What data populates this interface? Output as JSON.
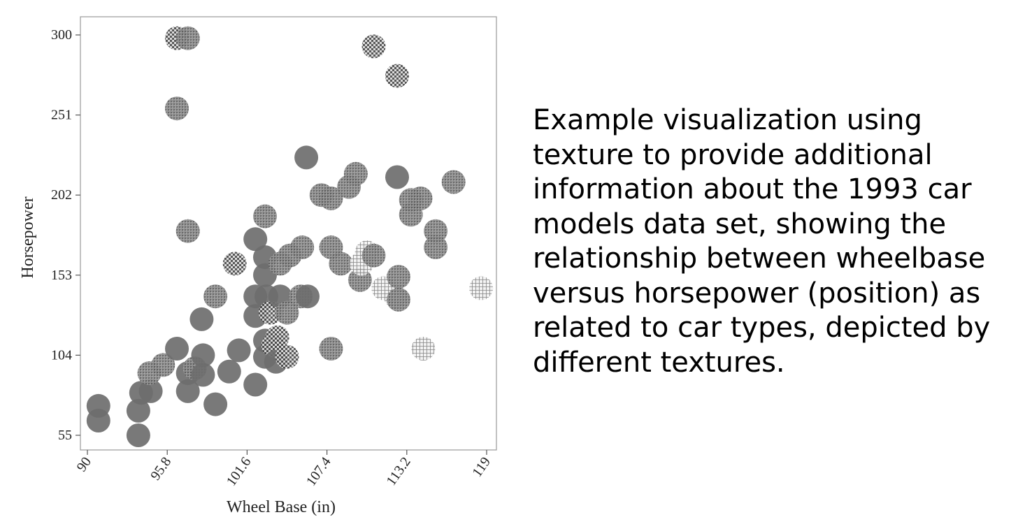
{
  "caption": "Example visualization using texture to provide additional information about the 1993 car models data set, showing the relationship between wheelbase versus horsepower (position) as related to car types, depicted by different textures.",
  "chart_data": {
    "type": "scatter",
    "xlabel": "Wheel Base (in)",
    "ylabel": "Horsepower",
    "xlim": [
      90,
      119
    ],
    "ylim": [
      55,
      300
    ],
    "xticks": [
      "90",
      "95.8",
      "101.6",
      "107.4",
      "113.2",
      "119"
    ],
    "yticks": [
      "55",
      "104",
      "153",
      "202",
      "251",
      "300"
    ],
    "textures": {
      "solid": {
        "color": "#6e6e6e"
      },
      "check": {
        "color": "#5a5a5a"
      },
      "grid": {
        "color": "#8a8a8a"
      },
      "speck": {
        "color": "#7a7a7a"
      }
    },
    "points": [
      {
        "x": 90.8,
        "y": 73,
        "t": "solid"
      },
      {
        "x": 90.8,
        "y": 64,
        "t": "solid"
      },
      {
        "x": 93.7,
        "y": 55,
        "t": "solid"
      },
      {
        "x": 93.7,
        "y": 70,
        "t": "solid"
      },
      {
        "x": 93.9,
        "y": 81,
        "t": "solid"
      },
      {
        "x": 94.6,
        "y": 82,
        "t": "solid"
      },
      {
        "x": 94.5,
        "y": 93,
        "t": "speck"
      },
      {
        "x": 95.5,
        "y": 98,
        "t": "speck"
      },
      {
        "x": 96.5,
        "y": 108,
        "t": "solid"
      },
      {
        "x": 97.3,
        "y": 93,
        "t": "solid"
      },
      {
        "x": 97.3,
        "y": 82,
        "t": "solid"
      },
      {
        "x": 97.8,
        "y": 96,
        "t": "speck"
      },
      {
        "x": 98.4,
        "y": 92,
        "t": "solid"
      },
      {
        "x": 98.4,
        "y": 104,
        "t": "solid"
      },
      {
        "x": 98.3,
        "y": 126,
        "t": "solid"
      },
      {
        "x": 99.3,
        "y": 74,
        "t": "solid"
      },
      {
        "x": 99.3,
        "y": 140,
        "t": "speck"
      },
      {
        "x": 100.3,
        "y": 94,
        "t": "solid"
      },
      {
        "x": 101.0,
        "y": 107,
        "t": "solid"
      },
      {
        "x": 100.7,
        "y": 160,
        "t": "check"
      },
      {
        "x": 102.2,
        "y": 86,
        "t": "solid"
      },
      {
        "x": 102.2,
        "y": 140,
        "t": "solid"
      },
      {
        "x": 102.2,
        "y": 128,
        "t": "solid"
      },
      {
        "x": 102.2,
        "y": 175,
        "t": "solid"
      },
      {
        "x": 102.9,
        "y": 189,
        "t": "speck"
      },
      {
        "x": 102.9,
        "y": 164,
        "t": "solid"
      },
      {
        "x": 102.9,
        "y": 153,
        "t": "solid"
      },
      {
        "x": 103.0,
        "y": 140,
        "t": "solid"
      },
      {
        "x": 102.9,
        "y": 113,
        "t": "solid"
      },
      {
        "x": 102.9,
        "y": 103,
        "t": "solid"
      },
      {
        "x": 103.3,
        "y": 130,
        "t": "check"
      },
      {
        "x": 103.5,
        "y": 110,
        "t": "check"
      },
      {
        "x": 103.7,
        "y": 100,
        "t": "solid"
      },
      {
        "x": 103.8,
        "y": 115,
        "t": "check"
      },
      {
        "x": 104.0,
        "y": 160,
        "t": "speck"
      },
      {
        "x": 104.0,
        "y": 140,
        "t": "solid"
      },
      {
        "x": 104.5,
        "y": 103,
        "t": "check"
      },
      {
        "x": 104.5,
        "y": 130,
        "t": "speck"
      },
      {
        "x": 104.7,
        "y": 165,
        "t": "speck"
      },
      {
        "x": 105.6,
        "y": 170,
        "t": "speck"
      },
      {
        "x": 105.5,
        "y": 140,
        "t": "speck"
      },
      {
        "x": 106.0,
        "y": 140,
        "t": "solid"
      },
      {
        "x": 105.9,
        "y": 225,
        "t": "solid"
      },
      {
        "x": 107.0,
        "y": 202,
        "t": "speck"
      },
      {
        "x": 107.7,
        "y": 200,
        "t": "speck"
      },
      {
        "x": 107.7,
        "y": 108,
        "t": "speck"
      },
      {
        "x": 107.7,
        "y": 170,
        "t": "speck"
      },
      {
        "x": 108.4,
        "y": 160,
        "t": "speck"
      },
      {
        "x": 109.0,
        "y": 207,
        "t": "speck"
      },
      {
        "x": 109.5,
        "y": 215,
        "t": "speck"
      },
      {
        "x": 109.8,
        "y": 150,
        "t": "speck"
      },
      {
        "x": 109.9,
        "y": 160,
        "t": "grid"
      },
      {
        "x": 110.3,
        "y": 167,
        "t": "grid"
      },
      {
        "x": 110.8,
        "y": 165,
        "t": "speck"
      },
      {
        "x": 110.8,
        "y": 293,
        "t": "check"
      },
      {
        "x": 111.5,
        "y": 145,
        "t": "grid"
      },
      {
        "x": 112.4,
        "y": 140,
        "t": "grid"
      },
      {
        "x": 112.6,
        "y": 152,
        "t": "speck"
      },
      {
        "x": 112.6,
        "y": 138,
        "t": "speck"
      },
      {
        "x": 112.5,
        "y": 275,
        "t": "check"
      },
      {
        "x": 112.5,
        "y": 213,
        "t": "solid"
      },
      {
        "x": 113.5,
        "y": 199,
        "t": "speck"
      },
      {
        "x": 113.5,
        "y": 190,
        "t": "speck"
      },
      {
        "x": 114.2,
        "y": 200,
        "t": "speck"
      },
      {
        "x": 114.4,
        "y": 108,
        "t": "grid"
      },
      {
        "x": 115.3,
        "y": 180,
        "t": "speck"
      },
      {
        "x": 115.3,
        "y": 170,
        "t": "speck"
      },
      {
        "x": 116.6,
        "y": 210,
        "t": "speck"
      },
      {
        "x": 118.6,
        "y": 145,
        "t": "grid"
      },
      {
        "x": 96.5,
        "y": 298,
        "t": "check"
      },
      {
        "x": 97.3,
        "y": 298,
        "t": "speck"
      },
      {
        "x": 96.5,
        "y": 255,
        "t": "speck"
      },
      {
        "x": 97.3,
        "y": 180,
        "t": "speck"
      }
    ]
  }
}
